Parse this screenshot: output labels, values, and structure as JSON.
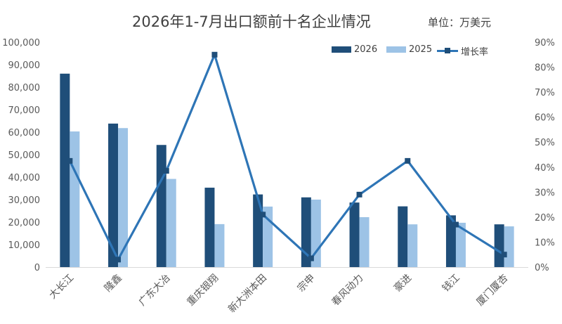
{
  "chart_data": {
    "type": "bar",
    "title": "2026年1-7月出口额前十名企业情况",
    "unit_note": "单位：万美元",
    "categories": [
      "大长江",
      "隆鑫",
      "广东大冶",
      "重庆银翔",
      "新大洲本田",
      "宗申",
      "春风动力",
      "豪进",
      "钱江",
      "厦门厦杏"
    ],
    "series": [
      {
        "name": "2026",
        "type": "bar",
        "axis": "left",
        "color": "#1F4E79",
        "values": [
          86000,
          63800,
          54300,
          35300,
          32300,
          31000,
          28700,
          27000,
          23000,
          19000
        ]
      },
      {
        "name": "2025",
        "type": "bar",
        "axis": "left",
        "color": "#9DC3E6",
        "values": [
          60300,
          61800,
          39200,
          19100,
          26900,
          30000,
          22200,
          19000,
          19700,
          18100
        ]
      },
      {
        "name": "增长率",
        "type": "line",
        "axis": "right",
        "color": "#2E75B6",
        "marker_color": "#1F4E79",
        "values": [
          0.425,
          0.03,
          0.385,
          0.85,
          0.21,
          0.035,
          0.29,
          0.425,
          0.17,
          0.05
        ]
      }
    ],
    "y_left": {
      "min": 0,
      "max": 100000,
      "step": 10000,
      "tick_labels": [
        "0",
        "10,000",
        "20,000",
        "30,000",
        "40,000",
        "50,000",
        "60,000",
        "70,000",
        "80,000",
        "90,000",
        "100,000"
      ]
    },
    "y_right": {
      "min": 0,
      "max": 0.9,
      "step": 0.1,
      "tick_labels": [
        "0%",
        "10%",
        "20%",
        "30%",
        "40%",
        "50%",
        "60%",
        "70%",
        "80%",
        "90%"
      ]
    },
    "legend_position": "top-right",
    "grid": false
  }
}
